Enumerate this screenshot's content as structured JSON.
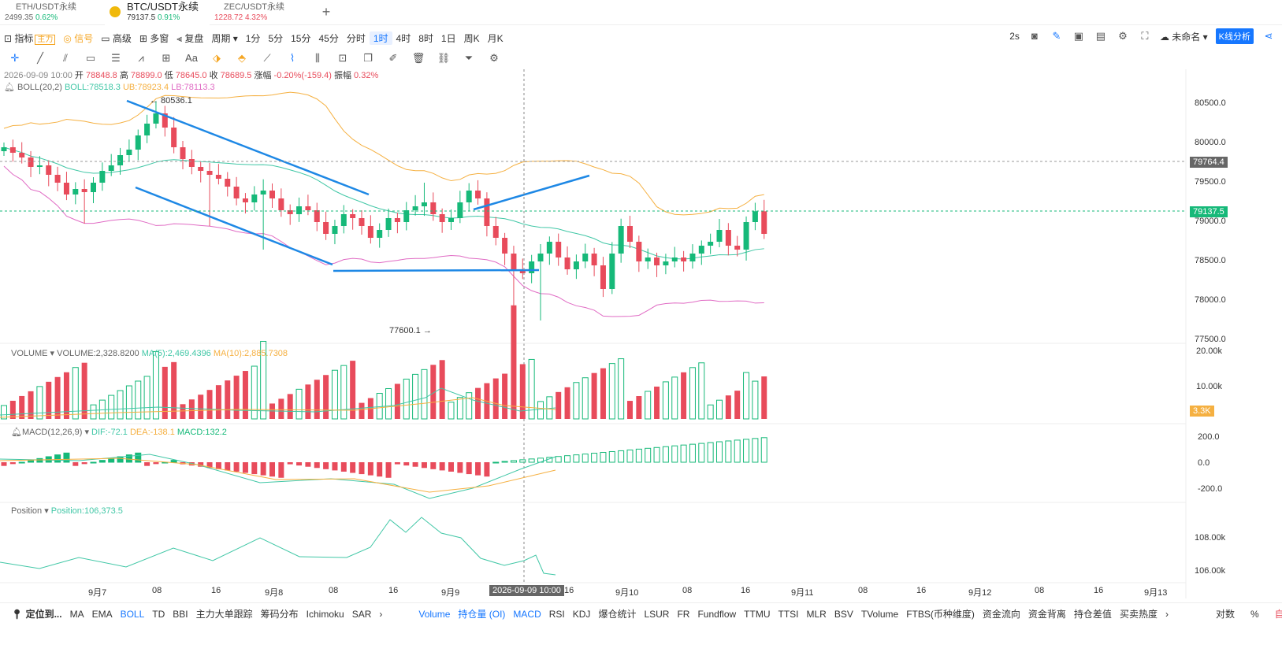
{
  "tabs": [
    {
      "name": "ETH/USDT永续",
      "price": "2499.35",
      "change": "0.62%"
    },
    {
      "name": "BTC/USDT永续",
      "price": "79137.5",
      "change": "0.91%"
    },
    {
      "name": "ZEC/USDT永续",
      "price": "1228.72",
      "change": "4.32%"
    }
  ],
  "toolbar": {
    "items": [
      "指标",
      "信号",
      "高级",
      "多窗",
      "复盘",
      "周期",
      "1分",
      "5分",
      "15分",
      "45分",
      "分时",
      "1时",
      "4时",
      "8时",
      "1日",
      "周K",
      "月K"
    ],
    "badge": "主力",
    "refresh": "2s",
    "unnamed": "未命名",
    "kline": "K线分析"
  },
  "ohlc": {
    "date": "2026-09-09 10:00",
    "open_l": "开",
    "open": "78848.8",
    "high_l": "高",
    "high": "78899.0",
    "low_l": "低",
    "low": "78645.0",
    "close_l": "收",
    "close": "78689.5",
    "chg_l": "涨幅",
    "chg": "-0.20%(-159.4)",
    "amp_l": "振幅",
    "amp": "0.32%"
  },
  "boll": {
    "label": "BOLL(20,2)",
    "mid": "BOLL:78518.3",
    "ub": "UB:78923.4",
    "lb": "LB:78113.3"
  },
  "annot": {
    "high": "← 80536.1",
    "low": "77600.1 →"
  },
  "price_axis": [
    "80500.0",
    "80000.0",
    "79500.0",
    "79000.0",
    "78500.0",
    "78000.0",
    "77500.0"
  ],
  "price_tags": {
    "upper": "79764.4",
    "current": "79137.5",
    "vol": "3.3K"
  },
  "volume": {
    "label": "VOLUME",
    "v": "VOLUME:2,328.8200",
    "ma5": "MA(5):2,469.4396",
    "ma10": "MA(10):2,885.7308",
    "axis": [
      "20.00k",
      "10.00k"
    ]
  },
  "macd": {
    "label": "MACD(12,26,9)",
    "dif": "DIF:-72.1",
    "dea": "DEA:-138.1",
    "macd": "MACD:132.2",
    "axis": [
      "200.0",
      "0.0",
      "-200.0"
    ]
  },
  "position": {
    "label": "Position",
    "v": "Position:106,373.5",
    "axis": [
      "108.00k",
      "106.00k"
    ]
  },
  "time_axis": [
    "9月7",
    "08",
    "16",
    "9月8",
    "08",
    "16",
    "9月9",
    "16",
    "9月10",
    "08",
    "16",
    "9月11",
    "08",
    "16",
    "9月12",
    "08",
    "16",
    "9月13"
  ],
  "crosshair_time": "2026-09-09 10:00",
  "bottom_left": [
    "定位到...",
    "MA",
    "EMA",
    "BOLL",
    "TD",
    "BBI",
    "主力大单跟踪",
    "筹码分布",
    "Ichimoku",
    "SAR"
  ],
  "bottom_right": [
    "Volume",
    "持仓量 (OI)",
    "MACD",
    "RSI",
    "KDJ",
    "爆仓统计",
    "LSUR",
    "FR",
    "Fundflow",
    "TTMU",
    "TTSI",
    "MLR",
    "BSV",
    "TVolume",
    "FTBS(币种维度)",
    "资金流向",
    "资金背离",
    "持仓差值",
    "买卖热度"
  ],
  "bottom_end": [
    "对数",
    "%",
    "自动"
  ],
  "colors": {
    "up": "#16b979",
    "down": "#e84b5b",
    "blue": "#1e88e5",
    "mid": "#41c7a6",
    "ub": "#f5b041",
    "lb": "#e06bc4"
  }
}
